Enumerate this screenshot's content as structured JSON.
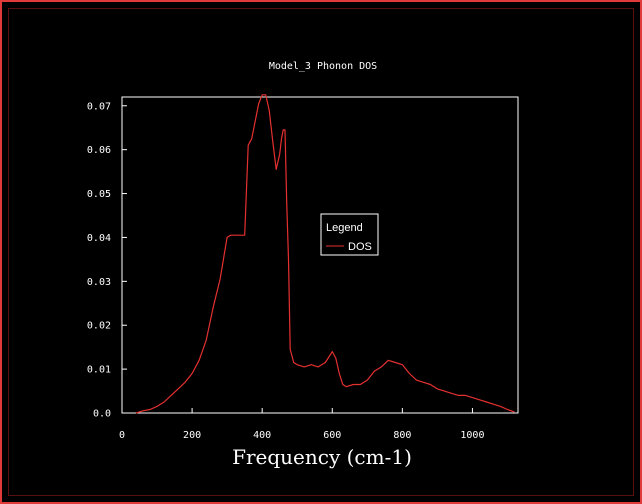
{
  "chart_data": {
    "type": "line",
    "title": "Model_3 Phonon DOS",
    "xlabel": "Frequency (cm-1)",
    "ylabel": "",
    "xlim": [
      0,
      1130
    ],
    "ylim": [
      0,
      0.072
    ],
    "xticks": [
      0,
      200,
      400,
      600,
      800,
      1000
    ],
    "xtick_labels": [
      "0",
      "200",
      "400",
      "600",
      "800",
      "1000"
    ],
    "yticks": [
      0,
      0.01,
      0.02,
      0.03,
      0.04,
      0.05,
      0.06,
      0.07
    ],
    "ytick_labels": [
      "0.0",
      "0.01",
      "0.02",
      "0.03",
      "0.04",
      "0.05",
      "0.06",
      "0.07"
    ],
    "grid": false,
    "legend": {
      "title": "Legend",
      "position": "center-right"
    },
    "series": [
      {
        "name": "DOS",
        "color": "#e53030",
        "x": [
          40,
          60,
          80,
          100,
          120,
          140,
          160,
          180,
          200,
          220,
          240,
          260,
          280,
          300,
          310,
          320,
          330,
          340,
          350,
          360,
          370,
          380,
          390,
          400,
          410,
          420,
          430,
          440,
          450,
          455,
          460,
          465,
          470,
          475,
          480,
          490,
          500,
          520,
          540,
          560,
          580,
          600,
          610,
          620,
          630,
          640,
          660,
          680,
          700,
          720,
          740,
          760,
          780,
          800,
          820,
          840,
          860,
          880,
          900,
          920,
          940,
          960,
          980,
          1000,
          1020,
          1040,
          1060,
          1080,
          1100,
          1120
        ],
        "values": [
          0.0,
          0.0005,
          0.0008,
          0.0015,
          0.0025,
          0.004,
          0.0055,
          0.007,
          0.009,
          0.012,
          0.0165,
          0.024,
          0.0305,
          0.04,
          0.0405,
          0.0405,
          0.0405,
          0.0405,
          0.0405,
          0.061,
          0.0625,
          0.0665,
          0.0705,
          0.0725,
          0.0725,
          0.069,
          0.062,
          0.0555,
          0.059,
          0.0625,
          0.0645,
          0.0645,
          0.048,
          0.035,
          0.0145,
          0.0115,
          0.011,
          0.0105,
          0.011,
          0.0105,
          0.0115,
          0.014,
          0.0125,
          0.009,
          0.0065,
          0.006,
          0.0065,
          0.0065,
          0.0075,
          0.0095,
          0.0105,
          0.012,
          0.0115,
          0.011,
          0.009,
          0.0075,
          0.007,
          0.0065,
          0.0055,
          0.005,
          0.0045,
          0.004,
          0.004,
          0.0035,
          0.003,
          0.0025,
          0.002,
          0.0015,
          0.0008,
          0.0002
        ]
      }
    ]
  }
}
